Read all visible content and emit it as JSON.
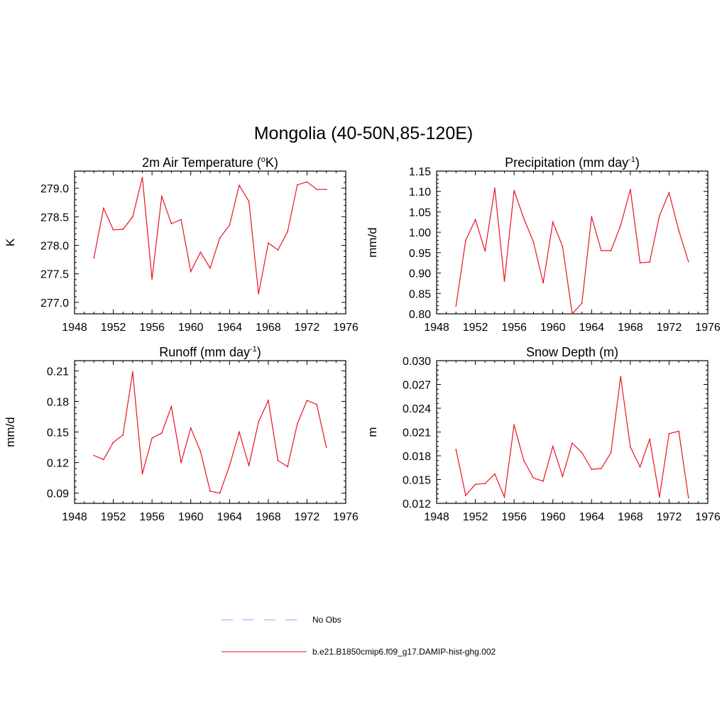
{
  "figure": {
    "title": "Mongolia (40-50N,85-120E)",
    "series_color": "#e8141e",
    "obs_color": "#9999ff"
  },
  "legend": {
    "items": [
      {
        "label": "No Obs",
        "style": "dashed",
        "color": "#9999ff"
      },
      {
        "label": "b.e21.B1850cmip6.f09_g17.DAMIP-hist-ghg.002",
        "style": "solid",
        "color": "#e8141e"
      }
    ]
  },
  "chart_data": [
    {
      "type": "line",
      "title": "2m Air Temperature (",
      "title_sup": "o",
      "title_end": "K)",
      "ylabel": "K",
      "xlim": [
        1948,
        1976
      ],
      "ylim": [
        276.8,
        279.3
      ],
      "xticks": [
        1948,
        1952,
        1956,
        1960,
        1964,
        1968,
        1972,
        1976
      ],
      "yticks": [
        "277.0",
        "277.5",
        "278.0",
        "278.5",
        "279.0"
      ],
      "x": [
        1950,
        1951,
        1952,
        1953,
        1954,
        1955,
        1956,
        1957,
        1958,
        1959,
        1960,
        1961,
        1962,
        1963,
        1964,
        1965,
        1966,
        1967,
        1968,
        1969,
        1970,
        1971,
        1972,
        1973,
        1974
      ],
      "series": [
        {
          "values": [
            277.78,
            278.65,
            278.27,
            278.28,
            278.5,
            279.19,
            277.41,
            278.86,
            278.38,
            278.45,
            277.54,
            277.88,
            277.6,
            278.13,
            278.35,
            279.05,
            278.77,
            277.15,
            278.04,
            277.92,
            278.24,
            279.06,
            279.11,
            278.98,
            278.98
          ]
        }
      ]
    },
    {
      "type": "line",
      "title": "Precipitation (mm day",
      "title_sup": "-1",
      "title_end": ")",
      "ylabel": "mm/d",
      "xlim": [
        1948,
        1976
      ],
      "ylim": [
        0.8,
        1.15
      ],
      "xticks": [
        1948,
        1952,
        1956,
        1960,
        1964,
        1968,
        1972,
        1976
      ],
      "yticks": [
        "0.80",
        "0.85",
        "0.90",
        "0.95",
        "1.00",
        "1.05",
        "1.10",
        "1.15"
      ],
      "x": [
        1950,
        1951,
        1952,
        1953,
        1954,
        1955,
        1956,
        1957,
        1958,
        1959,
        1960,
        1961,
        1962,
        1963,
        1964,
        1965,
        1966,
        1967,
        1968,
        1969,
        1970,
        1971,
        1972,
        1973,
        1974
      ],
      "series": [
        {
          "values": [
            0.819,
            0.98,
            1.031,
            0.954,
            1.108,
            0.88,
            1.102,
            1.034,
            0.976,
            0.876,
            1.025,
            0.965,
            0.8,
            0.826,
            1.038,
            0.955,
            0.955,
            1.017,
            1.105,
            0.925,
            0.927,
            1.04,
            1.097,
            1.004,
            0.928
          ]
        }
      ]
    },
    {
      "type": "line",
      "title": "Runoff (mm day",
      "title_sup": "-1",
      "title_end": ")",
      "ylabel": "mm/d",
      "xlim": [
        1948,
        1976
      ],
      "ylim": [
        0.08,
        0.22
      ],
      "xticks": [
        1948,
        1952,
        1956,
        1960,
        1964,
        1968,
        1972,
        1976
      ],
      "yticks": [
        "0.09",
        "0.12",
        "0.15",
        "0.18",
        "0.21"
      ],
      "x": [
        1950,
        1951,
        1952,
        1953,
        1954,
        1955,
        1956,
        1957,
        1958,
        1959,
        1960,
        1961,
        1962,
        1963,
        1964,
        1965,
        1966,
        1967,
        1968,
        1969,
        1970,
        1971,
        1972,
        1973,
        1974
      ],
      "series": [
        {
          "values": [
            0.127,
            0.123,
            0.14,
            0.147,
            0.209,
            0.109,
            0.144,
            0.149,
            0.175,
            0.12,
            0.154,
            0.131,
            0.092,
            0.09,
            0.117,
            0.15,
            0.117,
            0.16,
            0.181,
            0.122,
            0.116,
            0.158,
            0.181,
            0.177,
            0.135
          ]
        }
      ]
    },
    {
      "type": "line",
      "title": "Snow Depth (m)",
      "title_sup": "",
      "title_end": "",
      "ylabel": "m",
      "xlim": [
        1948,
        1976
      ],
      "ylim": [
        0.012,
        0.03
      ],
      "xticks": [
        1948,
        1952,
        1956,
        1960,
        1964,
        1968,
        1972,
        1976
      ],
      "yticks": [
        "0.012",
        "0.015",
        "0.018",
        "0.021",
        "0.024",
        "0.027",
        "0.030"
      ],
      "x": [
        1950,
        1951,
        1952,
        1953,
        1954,
        1955,
        1956,
        1957,
        1958,
        1959,
        1960,
        1961,
        1962,
        1963,
        1964,
        1965,
        1966,
        1967,
        1968,
        1969,
        1970,
        1971,
        1972,
        1973,
        1974
      ],
      "series": [
        {
          "values": [
            0.0188,
            0.013,
            0.0144,
            0.0145,
            0.0157,
            0.0128,
            0.0219,
            0.0174,
            0.0152,
            0.0148,
            0.0192,
            0.0154,
            0.0196,
            0.0184,
            0.0163,
            0.0164,
            0.0184,
            0.028,
            0.0191,
            0.0166,
            0.0201,
            0.0128,
            0.0208,
            0.0211,
            0.0127
          ]
        }
      ]
    }
  ]
}
